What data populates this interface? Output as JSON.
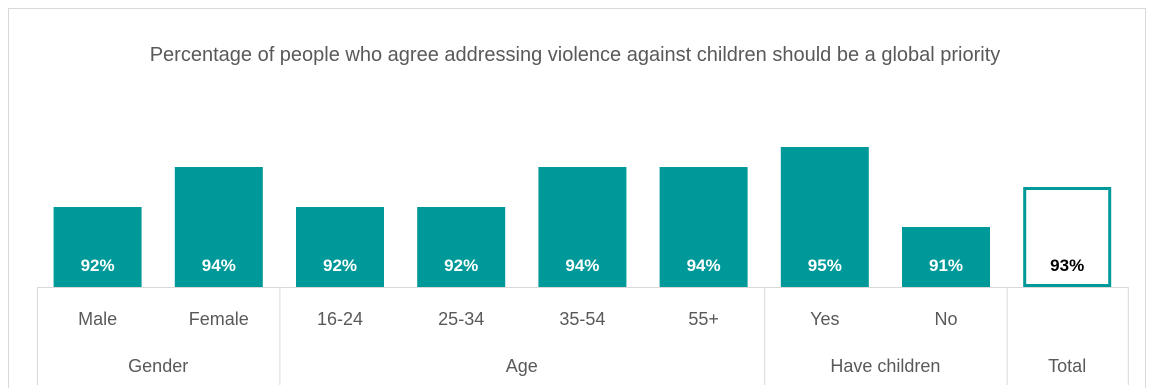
{
  "chart_data": {
    "type": "bar",
    "title": "Percentage of people who agree addressing violence against children should be a global priority",
    "xlabel": "",
    "ylabel": "",
    "categories": [
      "Male",
      "Female",
      "16-24",
      "25-34",
      "35-54",
      "55+",
      "Yes",
      "No",
      "Total"
    ],
    "groups": [
      {
        "name": "Gender",
        "categories": [
          "Male",
          "Female"
        ]
      },
      {
        "name": "Age",
        "categories": [
          "16-24",
          "25-34",
          "35-54",
          "55+"
        ]
      },
      {
        "name": "Have children",
        "categories": [
          "Yes",
          "No"
        ]
      },
      {
        "name": "Total",
        "categories": [
          "Total"
        ]
      }
    ],
    "values": [
      92,
      94,
      92,
      92,
      94,
      94,
      95,
      91,
      93
    ],
    "data_labels": [
      "92%",
      "94%",
      "92%",
      "92%",
      "94%",
      "94%",
      "95%",
      "91%",
      "93%"
    ],
    "category_labels": [
      "Male",
      "Female",
      "16-24",
      "25-34",
      "35-54",
      "55+",
      "Yes",
      "No",
      ""
    ],
    "highlight_last": true,
    "grid": false,
    "legend": "none"
  },
  "colors": {
    "bar_fill": "#009999",
    "bar_label": "#ffffff",
    "highlight_border": "#009999",
    "highlight_label": "#000000",
    "axis_lines": "#d9d9d9"
  }
}
